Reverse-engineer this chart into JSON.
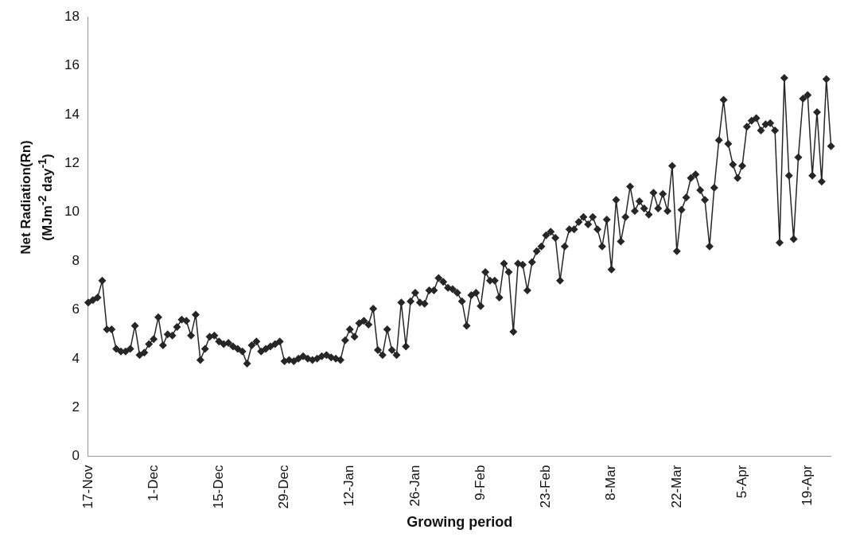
{
  "chart_data": {
    "type": "line",
    "xlabel": "Growing period",
    "ylabel": "Net Radiation(Rn)\n(MJm$^{-2}$ day$^{-1}$)",
    "categories": [
      "17-Nov",
      null,
      null,
      null,
      null,
      null,
      null,
      null,
      null,
      null,
      null,
      null,
      null,
      null,
      "1-Dec",
      null,
      null,
      null,
      null,
      null,
      null,
      null,
      null,
      null,
      null,
      null,
      null,
      null,
      "15-Dec",
      null,
      null,
      null,
      null,
      null,
      null,
      null,
      null,
      null,
      null,
      null,
      null,
      null,
      "29-Dec",
      null,
      null,
      null,
      null,
      null,
      null,
      null,
      null,
      null,
      null,
      null,
      null,
      null,
      "12-Jan",
      null,
      null,
      null,
      null,
      null,
      null,
      null,
      null,
      null,
      null,
      null,
      null,
      null,
      "26-Jan",
      null,
      null,
      null,
      null,
      null,
      null,
      null,
      null,
      null,
      null,
      null,
      null,
      null,
      "9-Feb",
      null,
      null,
      null,
      null,
      null,
      null,
      null,
      null,
      null,
      null,
      null,
      null,
      null,
      "23-Feb",
      null,
      null,
      null,
      null,
      null,
      null,
      null,
      null,
      null,
      null,
      null,
      null,
      null,
      "8-Mar",
      null,
      null,
      null,
      null,
      null,
      null,
      null,
      null,
      null,
      null,
      null,
      null,
      null,
      "22-Mar",
      null,
      null,
      null,
      null,
      null,
      null,
      null,
      null,
      null,
      null,
      null,
      null,
      null,
      "5-Apr",
      null,
      null,
      null,
      null,
      null,
      null,
      null,
      null,
      null,
      null,
      null,
      null,
      null,
      "19-Apr",
      null,
      null,
      null,
      null,
      null
    ],
    "series": [
      {
        "color": "#262626",
        "values": [
          6.3,
          6.4,
          6.5,
          7.2,
          5.2,
          5.2,
          4.4,
          4.3,
          4.3,
          4.4,
          5.35,
          4.15,
          4.25,
          4.6,
          4.8,
          5.7,
          4.55,
          5.0,
          4.95,
          5.3,
          5.6,
          5.55,
          4.95,
          5.8,
          3.95,
          4.4,
          4.9,
          4.95,
          4.7,
          4.6,
          4.65,
          4.5,
          4.4,
          4.3,
          3.8,
          4.55,
          4.7,
          4.3,
          4.4,
          4.5,
          4.6,
          4.7,
          3.9,
          3.95,
          3.9,
          4.0,
          4.1,
          4.0,
          3.95,
          4.0,
          4.1,
          4.15,
          4.05,
          4.0,
          3.95,
          4.75,
          5.2,
          4.9,
          5.45,
          5.55,
          5.4,
          6.05,
          4.35,
          4.15,
          5.2,
          4.35,
          4.15,
          6.3,
          4.5,
          6.35,
          6.7,
          6.3,
          6.25,
          6.8,
          6.8,
          7.3,
          7.15,
          6.9,
          6.85,
          6.7,
          6.35,
          5.35,
          6.6,
          6.7,
          6.15,
          7.55,
          7.2,
          7.2,
          6.5,
          7.9,
          7.55,
          5.1,
          7.9,
          7.85,
          6.8,
          7.95,
          8.4,
          8.6,
          9.05,
          9.2,
          8.95,
          7.2,
          8.6,
          9.3,
          9.3,
          9.6,
          9.8,
          9.5,
          9.8,
          9.3,
          8.6,
          9.7,
          7.65,
          10.5,
          8.8,
          9.8,
          11.05,
          10.05,
          10.45,
          10.15,
          9.9,
          10.8,
          10.15,
          10.75,
          10.05,
          11.9,
          8.4,
          10.1,
          10.6,
          11.4,
          11.55,
          10.9,
          10.5,
          8.6,
          11.0,
          12.95,
          14.6,
          12.8,
          11.95,
          11.4,
          11.9,
          13.5,
          13.75,
          13.85,
          13.35,
          13.6,
          13.65,
          13.35,
          8.75,
          15.5,
          11.5,
          8.9,
          12.25,
          14.65,
          14.8,
          11.5,
          14.1,
          11.25,
          15.45,
          12.7
        ]
      }
    ],
    "ylim": [
      0,
      18
    ],
    "yticks": [
      0,
      2,
      4,
      6,
      8,
      10,
      12,
      14,
      16,
      18
    ],
    "grid": false,
    "legend": false,
    "marker": "diamond",
    "line_style": "solid"
  }
}
